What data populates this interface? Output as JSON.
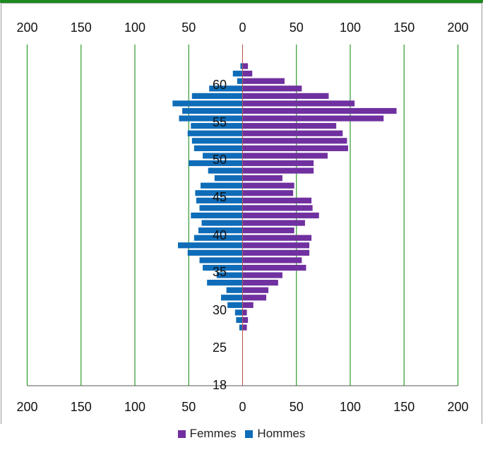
{
  "colors": {
    "femmes": "#7030a0",
    "hommes": "#0e6cb8",
    "grid": "#2e9a2e",
    "zero_line": "#c0504d",
    "frame_accent": "#1c8a1c",
    "border": "#9a9a9a"
  },
  "chart_data": {
    "type": "bar",
    "orientation": "horizontal",
    "subtype": "population-pyramid",
    "title": "",
    "xlabel": "",
    "ylabel": "",
    "x_tick_labels": [
      "200",
      "150",
      "100",
      "50",
      "0",
      "50",
      "100",
      "150",
      "200"
    ],
    "xlim": [
      -200,
      200
    ],
    "grid": true,
    "legend_position": "bottom",
    "age_labels": [
      "18",
      "25",
      "30",
      "35",
      "40",
      "45",
      "50",
      "55",
      "60"
    ],
    "ages": [
      62,
      61,
      60,
      59,
      58,
      57,
      56,
      55,
      54,
      53,
      52,
      51,
      50,
      49,
      48,
      47,
      46,
      45,
      44,
      43,
      42,
      41,
      40,
      39,
      38,
      37,
      36,
      35,
      34,
      33,
      32,
      31,
      30,
      29,
      28,
      27,
      26
    ],
    "series": [
      {
        "name": "Femmes",
        "side": "right",
        "values": [
          5,
          9,
          39,
          55,
          80,
          104,
          143,
          131,
          87,
          93,
          97,
          98,
          79,
          66,
          66,
          37,
          48,
          47,
          64,
          65,
          71,
          58,
          48,
          64,
          62,
          62,
          55,
          59,
          37,
          33,
          24,
          22,
          10,
          4,
          5,
          4,
          0
        ]
      },
      {
        "name": "Hommes",
        "side": "left",
        "values": [
          2,
          9,
          5,
          31,
          47,
          65,
          56,
          59,
          48,
          51,
          47,
          45,
          37,
          50,
          32,
          26,
          39,
          44,
          43,
          40,
          48,
          38,
          41,
          45,
          60,
          51,
          40,
          37,
          24,
          33,
          15,
          20,
          14,
          7,
          6,
          3,
          0
        ]
      }
    ]
  }
}
